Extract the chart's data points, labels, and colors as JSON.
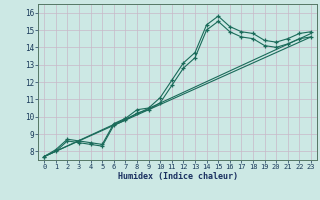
{
  "title": "",
  "xlabel": "Humidex (Indice chaleur)",
  "bg_color": "#cce8e4",
  "grid_color": "#c8b8c8",
  "line_color": "#1a6b5a",
  "xlim": [
    -0.5,
    23.5
  ],
  "ylim": [
    7.5,
    16.5
  ],
  "xticks": [
    0,
    1,
    2,
    3,
    4,
    5,
    6,
    7,
    8,
    9,
    10,
    11,
    12,
    13,
    14,
    15,
    16,
    17,
    18,
    19,
    20,
    21,
    22,
    23
  ],
  "yticks": [
    8,
    9,
    10,
    11,
    12,
    13,
    14,
    15,
    16
  ],
  "line1_x": [
    0,
    1,
    2,
    3,
    4,
    5,
    6,
    7,
    8,
    9,
    10,
    11,
    12,
    13,
    14,
    15,
    16,
    17,
    18,
    19,
    20,
    21,
    22,
    23
  ],
  "line1_y": [
    7.7,
    8.1,
    8.7,
    8.6,
    8.5,
    8.4,
    9.6,
    9.9,
    10.4,
    10.5,
    11.1,
    12.1,
    13.1,
    13.7,
    15.3,
    15.8,
    15.2,
    14.9,
    14.8,
    14.4,
    14.3,
    14.5,
    14.8,
    14.9
  ],
  "line2_x": [
    0,
    1,
    2,
    3,
    4,
    5,
    6,
    7,
    8,
    9,
    10,
    11,
    12,
    13,
    14,
    15,
    16,
    17,
    18,
    19,
    20,
    21,
    22,
    23
  ],
  "line2_y": [
    7.7,
    8.0,
    8.6,
    8.5,
    8.4,
    8.3,
    9.5,
    9.8,
    10.2,
    10.4,
    10.8,
    11.8,
    12.8,
    13.4,
    15.0,
    15.5,
    14.9,
    14.6,
    14.5,
    14.1,
    14.0,
    14.2,
    14.5,
    14.6
  ],
  "line3_x": [
    0,
    23
  ],
  "line3_y": [
    7.7,
    14.8
  ],
  "line4_x": [
    0,
    23
  ],
  "line4_y": [
    7.7,
    14.6
  ]
}
